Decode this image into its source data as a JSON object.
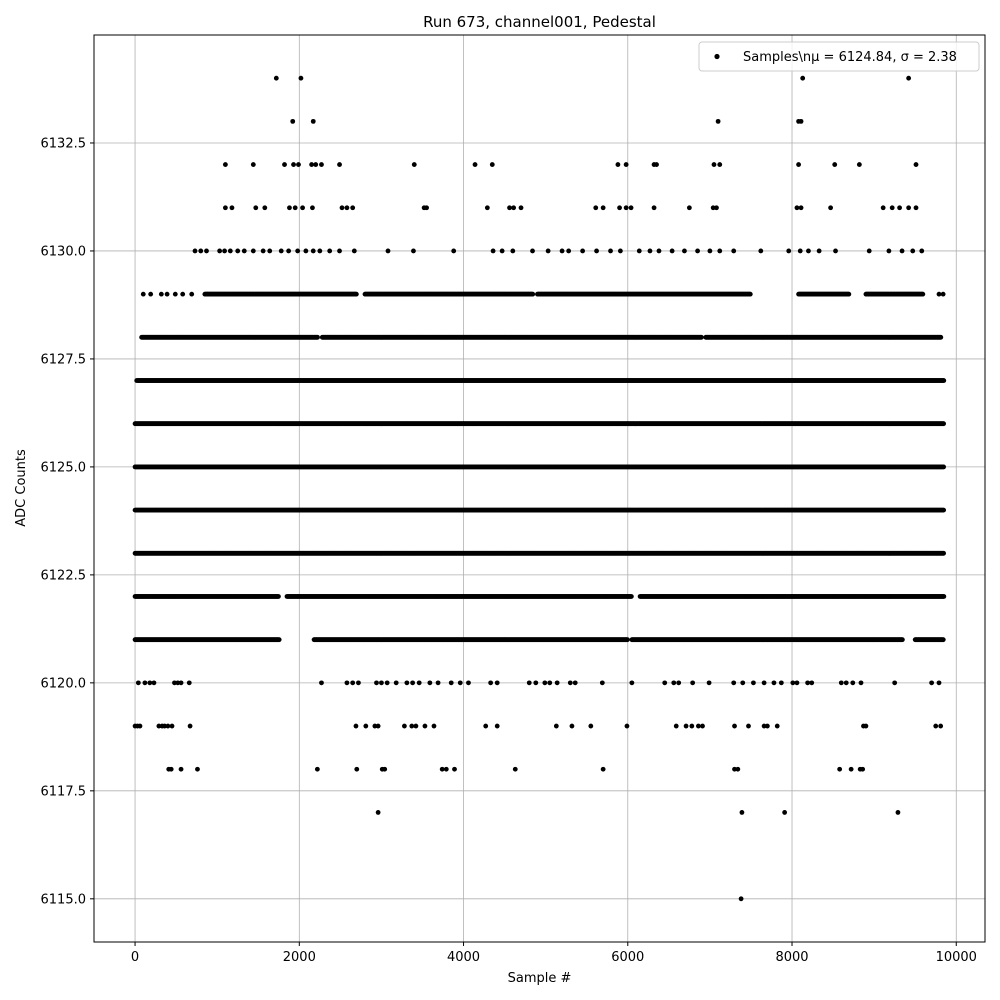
{
  "chart_data": {
    "type": "scatter",
    "title": "Run 673, channel001, Pedestal",
    "xlabel": "Sample #",
    "ylabel": "ADC Counts",
    "xlim": [
      -500,
      10350
    ],
    "ylim": [
      6114,
      6135
    ],
    "xticks": [
      0,
      2000,
      4000,
      6000,
      8000,
      10000
    ],
    "xtick_labels": [
      "0",
      "2000",
      "4000",
      "6000",
      "8000",
      "10000"
    ],
    "yticks": [
      6115.0,
      6117.5,
      6120.0,
      6122.5,
      6125.0,
      6127.5,
      6130.0,
      6132.5
    ],
    "ytick_labels": [
      "6115.0",
      "6117.5",
      "6120.0",
      "6122.5",
      "6125.0",
      "6127.5",
      "6130.0",
      "6132.5"
    ],
    "grid": true,
    "legend_position": "top-right",
    "marker_color": "#000000",
    "series": [
      {
        "name": "Samples\\n$\\mu$ = 6124.84, $\\sigma$ = 2.38",
        "legend_label": "Samples\\nμ = 6124.84, σ = 2.38",
        "x_range": [
          0,
          9850
        ],
        "y_levels": [
          6115,
          6117,
          6118,
          6119,
          6120,
          6121,
          6122,
          6123,
          6124,
          6125,
          6126,
          6127,
          6128,
          6129,
          6130,
          6131,
          6132,
          6133,
          6134
        ],
        "bands": [
          {
            "y": 6123,
            "segments": [
              [
                0,
                9850
              ]
            ]
          },
          {
            "y": 6124,
            "segments": [
              [
                0,
                9850
              ]
            ]
          },
          {
            "y": 6125,
            "segments": [
              [
                0,
                9850
              ]
            ]
          },
          {
            "y": 6126,
            "segments": [
              [
                0,
                9850
              ]
            ]
          },
          {
            "y": 6127,
            "segments": [
              [
                20,
                9850
              ]
            ]
          },
          {
            "y": 6122,
            "segments": [
              [
                0,
                1750
              ],
              [
                1850,
                6050
              ],
              [
                6150,
                9850
              ]
            ]
          },
          {
            "y": 6121,
            "segments": [
              [
                0,
                1760
              ],
              [
                2180,
                6000
              ],
              [
                6050,
                9350
              ],
              [
                9500,
                9850
              ]
            ]
          },
          {
            "y": 6128,
            "segments": [
              [
                80,
                2230
              ],
              [
                2280,
                6900
              ],
              [
                6950,
                9820
              ]
            ]
          },
          {
            "y": 6129,
            "segments": [
              [
                850,
                2700
              ],
              [
                2800,
                4850
              ],
              [
                4900,
                7500
              ],
              [
                8080,
                8700
              ],
              [
                8900,
                9600
              ]
            ]
          }
        ],
        "points": [
          [
            0,
            6119
          ],
          [
            30,
            6119
          ],
          [
            60,
            6119
          ],
          [
            40,
            6120
          ],
          [
            120,
            6120
          ],
          [
            180,
            6120
          ],
          [
            230,
            6120
          ],
          [
            290,
            6119
          ],
          [
            330,
            6119
          ],
          [
            360,
            6119
          ],
          [
            400,
            6119
          ],
          [
            450,
            6119
          ],
          [
            480,
            6120
          ],
          [
            520,
            6120
          ],
          [
            560,
            6120
          ],
          [
            660,
            6120
          ],
          [
            670,
            6119
          ],
          [
            410,
            6118
          ],
          [
            440,
            6118
          ],
          [
            560,
            6118
          ],
          [
            760,
            6118
          ],
          [
            100,
            6129
          ],
          [
            190,
            6129
          ],
          [
            320,
            6129
          ],
          [
            390,
            6129
          ],
          [
            490,
            6129
          ],
          [
            580,
            6129
          ],
          [
            690,
            6129
          ],
          [
            730,
            6130
          ],
          [
            800,
            6130
          ],
          [
            870,
            6130
          ],
          [
            1030,
            6130
          ],
          [
            1090,
            6130
          ],
          [
            1160,
            6130
          ],
          [
            1250,
            6130
          ],
          [
            1330,
            6130
          ],
          [
            1440,
            6130
          ],
          [
            1560,
            6130
          ],
          [
            1640,
            6130
          ],
          [
            1780,
            6130
          ],
          [
            1870,
            6130
          ],
          [
            1980,
            6130
          ],
          [
            2080,
            6130
          ],
          [
            2170,
            6130
          ],
          [
            2250,
            6130
          ],
          [
            2370,
            6130
          ],
          [
            2490,
            6130
          ],
          [
            2670,
            6130
          ],
          [
            3080,
            6130
          ],
          [
            3390,
            6130
          ],
          [
            3880,
            6130
          ],
          [
            4360,
            6130
          ],
          [
            4470,
            6130
          ],
          [
            4600,
            6130
          ],
          [
            4840,
            6130
          ],
          [
            5030,
            6130
          ],
          [
            5200,
            6130
          ],
          [
            5280,
            6130
          ],
          [
            5450,
            6130
          ],
          [
            5620,
            6130
          ],
          [
            5790,
            6130
          ],
          [
            5910,
            6130
          ],
          [
            6140,
            6130
          ],
          [
            6270,
            6130
          ],
          [
            6380,
            6130
          ],
          [
            6540,
            6130
          ],
          [
            6690,
            6130
          ],
          [
            6850,
            6130
          ],
          [
            7000,
            6130
          ],
          [
            7120,
            6130
          ],
          [
            7290,
            6130
          ],
          [
            7620,
            6130
          ],
          [
            7960,
            6130
          ],
          [
            8100,
            6130
          ],
          [
            8200,
            6130
          ],
          [
            8330,
            6130
          ],
          [
            8530,
            6130
          ],
          [
            8940,
            6130
          ],
          [
            9180,
            6130
          ],
          [
            9340,
            6130
          ],
          [
            9470,
            6130
          ],
          [
            9580,
            6130
          ],
          [
            9790,
            6129
          ],
          [
            9840,
            6129
          ],
          [
            1100,
            6131
          ],
          [
            1180,
            6131
          ],
          [
            1470,
            6131
          ],
          [
            1580,
            6131
          ],
          [
            1880,
            6131
          ],
          [
            1950,
            6131
          ],
          [
            2040,
            6131
          ],
          [
            2160,
            6131
          ],
          [
            2520,
            6131
          ],
          [
            2580,
            6131
          ],
          [
            2650,
            6131
          ],
          [
            3520,
            6131
          ],
          [
            3550,
            6131
          ],
          [
            4290,
            6131
          ],
          [
            4560,
            6131
          ],
          [
            4610,
            6131
          ],
          [
            4700,
            6131
          ],
          [
            5610,
            6131
          ],
          [
            5700,
            6131
          ],
          [
            5900,
            6131
          ],
          [
            5980,
            6131
          ],
          [
            6040,
            6131
          ],
          [
            6320,
            6131
          ],
          [
            6750,
            6131
          ],
          [
            7040,
            6131
          ],
          [
            7080,
            6131
          ],
          [
            8060,
            6131
          ],
          [
            8110,
            6131
          ],
          [
            8470,
            6131
          ],
          [
            9110,
            6131
          ],
          [
            9220,
            6131
          ],
          [
            9310,
            6131
          ],
          [
            9420,
            6131
          ],
          [
            9510,
            6131
          ],
          [
            1100,
            6132
          ],
          [
            1440,
            6132
          ],
          [
            1820,
            6132
          ],
          [
            1930,
            6132
          ],
          [
            1990,
            6132
          ],
          [
            2150,
            6132
          ],
          [
            2200,
            6132
          ],
          [
            2270,
            6132
          ],
          [
            2490,
            6132
          ],
          [
            3400,
            6132
          ],
          [
            4140,
            6132
          ],
          [
            4350,
            6132
          ],
          [
            5880,
            6132
          ],
          [
            5980,
            6132
          ],
          [
            6320,
            6132
          ],
          [
            6350,
            6132
          ],
          [
            7050,
            6132
          ],
          [
            7120,
            6132
          ],
          [
            8080,
            6132
          ],
          [
            8520,
            6132
          ],
          [
            8820,
            6132
          ],
          [
            9510,
            6132
          ],
          [
            1920,
            6133
          ],
          [
            2170,
            6133
          ],
          [
            7100,
            6133
          ],
          [
            8080,
            6133
          ],
          [
            8110,
            6133
          ],
          [
            1720,
            6134
          ],
          [
            2020,
            6134
          ],
          [
            8130,
            6134
          ],
          [
            9420,
            6134
          ],
          [
            2270,
            6120
          ],
          [
            2580,
            6120
          ],
          [
            2650,
            6120
          ],
          [
            2720,
            6120
          ],
          [
            2940,
            6120
          ],
          [
            3000,
            6120
          ],
          [
            3070,
            6120
          ],
          [
            3180,
            6120
          ],
          [
            3310,
            6120
          ],
          [
            3380,
            6120
          ],
          [
            3460,
            6120
          ],
          [
            3590,
            6120
          ],
          [
            3690,
            6120
          ],
          [
            3850,
            6120
          ],
          [
            3960,
            6120
          ],
          [
            4060,
            6120
          ],
          [
            4330,
            6120
          ],
          [
            4410,
            6120
          ],
          [
            4800,
            6120
          ],
          [
            4880,
            6120
          ],
          [
            4990,
            6120
          ],
          [
            5050,
            6120
          ],
          [
            5140,
            6120
          ],
          [
            5300,
            6120
          ],
          [
            5360,
            6120
          ],
          [
            5690,
            6120
          ],
          [
            6050,
            6120
          ],
          [
            6450,
            6120
          ],
          [
            6560,
            6120
          ],
          [
            6620,
            6120
          ],
          [
            6790,
            6120
          ],
          [
            6990,
            6120
          ],
          [
            7290,
            6120
          ],
          [
            7400,
            6120
          ],
          [
            7530,
            6120
          ],
          [
            7660,
            6120
          ],
          [
            7780,
            6120
          ],
          [
            7870,
            6120
          ],
          [
            8010,
            6120
          ],
          [
            8060,
            6120
          ],
          [
            8190,
            6120
          ],
          [
            8240,
            6120
          ],
          [
            8600,
            6120
          ],
          [
            8660,
            6120
          ],
          [
            8740,
            6120
          ],
          [
            8840,
            6120
          ],
          [
            9250,
            6120
          ],
          [
            9700,
            6120
          ],
          [
            9790,
            6120
          ],
          [
            2690,
            6119
          ],
          [
            2810,
            6119
          ],
          [
            2920,
            6119
          ],
          [
            2960,
            6119
          ],
          [
            3280,
            6119
          ],
          [
            3370,
            6119
          ],
          [
            3420,
            6119
          ],
          [
            3530,
            6119
          ],
          [
            3640,
            6119
          ],
          [
            4270,
            6119
          ],
          [
            4410,
            6119
          ],
          [
            5130,
            6119
          ],
          [
            5320,
            6119
          ],
          [
            5550,
            6119
          ],
          [
            5990,
            6119
          ],
          [
            6590,
            6119
          ],
          [
            6710,
            6119
          ],
          [
            6780,
            6119
          ],
          [
            6860,
            6119
          ],
          [
            6910,
            6119
          ],
          [
            7300,
            6119
          ],
          [
            7470,
            6119
          ],
          [
            7660,
            6119
          ],
          [
            7700,
            6119
          ],
          [
            7820,
            6119
          ],
          [
            8870,
            6119
          ],
          [
            8900,
            6119
          ],
          [
            9750,
            6119
          ],
          [
            9810,
            6119
          ],
          [
            2220,
            6118
          ],
          [
            2700,
            6118
          ],
          [
            3010,
            6118
          ],
          [
            3040,
            6118
          ],
          [
            3740,
            6118
          ],
          [
            3790,
            6118
          ],
          [
            3890,
            6118
          ],
          [
            4630,
            6118
          ],
          [
            5700,
            6118
          ],
          [
            7300,
            6118
          ],
          [
            7340,
            6118
          ],
          [
            8580,
            6118
          ],
          [
            8720,
            6118
          ],
          [
            8830,
            6118
          ],
          [
            8860,
            6118
          ],
          [
            2960,
            6117
          ],
          [
            7390,
            6117
          ],
          [
            7910,
            6117
          ],
          [
            9290,
            6117
          ],
          [
            7380,
            6115
          ]
        ]
      }
    ]
  }
}
